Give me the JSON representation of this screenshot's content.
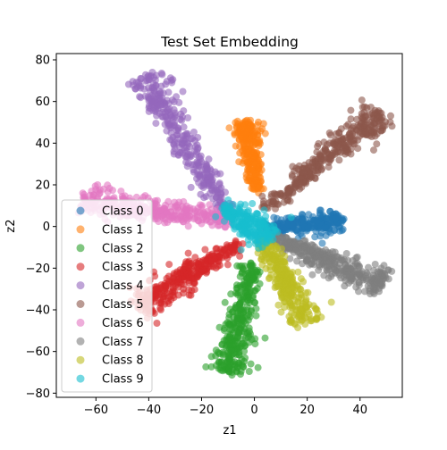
{
  "chart_data": {
    "type": "scatter",
    "title": "Test Set Embedding",
    "xlabel": "z1",
    "ylabel": "z2",
    "xlim": [
      -75,
      56
    ],
    "ylim": [
      -82,
      83
    ],
    "xticks": [
      -60,
      -40,
      -20,
      0,
      20,
      40
    ],
    "yticks": [
      -80,
      -60,
      -40,
      -20,
      0,
      20,
      40,
      60,
      80
    ],
    "grid": false,
    "legend_position": "lower-left",
    "marker_alpha": 0.6,
    "series": [
      {
        "name": "Class 0",
        "color": "#1f77b4",
        "start": [
          4,
          -1
        ],
        "end": [
          33,
          3
        ],
        "width": 2.5,
        "count": 260
      },
      {
        "name": "Class 1",
        "color": "#ff7f0e",
        "start": [
          1,
          16
        ],
        "end": [
          -3,
          50
        ],
        "width": 2.2,
        "count": 260
      },
      {
        "name": "Class 2",
        "color": "#2ca02c",
        "start": [
          -1,
          -18
        ],
        "end": [
          -10,
          -70
        ],
        "width": 3.0,
        "count": 320
      },
      {
        "name": "Class 3",
        "color": "#d62728",
        "start": [
          -6,
          -8
        ],
        "end": [
          -44,
          -38
        ],
        "width": 3.2,
        "count": 320
      },
      {
        "name": "Class 4",
        "color": "#9467bd",
        "start": [
          -10,
          6
        ],
        "end": [
          -42,
          72
        ],
        "width": 3.0,
        "count": 340
      },
      {
        "name": "Class 5",
        "color": "#8c564b",
        "start": [
          4,
          8
        ],
        "end": [
          48,
          55
        ],
        "width": 3.0,
        "count": 340
      },
      {
        "name": "Class 6",
        "color": "#e377c2",
        "start": [
          -8,
          3
        ],
        "end": [
          -66,
          13
        ],
        "width": 3.2,
        "count": 340
      },
      {
        "name": "Class 7",
        "color": "#7f7f7f",
        "start": [
          6,
          -5
        ],
        "end": [
          49,
          -28
        ],
        "width": 3.2,
        "count": 340
      },
      {
        "name": "Class 8",
        "color": "#bcbd22",
        "start": [
          3,
          -6
        ],
        "end": [
          20,
          -46
        ],
        "width": 2.8,
        "count": 300
      },
      {
        "name": "Class 9",
        "color": "#17becf",
        "start": [
          -12,
          10
        ],
        "end": [
          6,
          -6
        ],
        "width": 3.5,
        "count": 200
      }
    ]
  }
}
